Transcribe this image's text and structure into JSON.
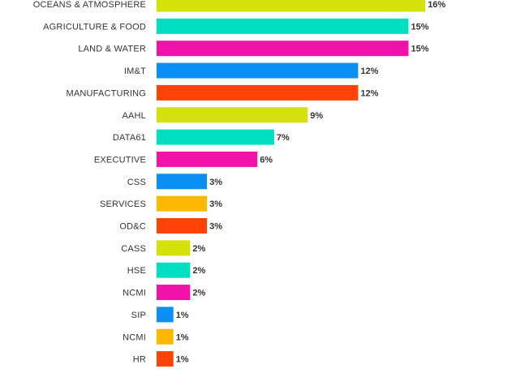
{
  "chart_data": {
    "type": "bar",
    "orientation": "horizontal",
    "categories": [
      "OCEANS & ATMOSPHERE",
      "AGRICULTURE & FOOD",
      "LAND & WATER",
      "IM&T",
      "MANUFACTURING",
      "AAHL",
      "DATA61",
      "EXECUTIVE",
      "CSS",
      "SERVICES",
      "OD&C",
      "CASS",
      "HSE",
      "NCMI",
      "SIP",
      "NCMI",
      "HR"
    ],
    "values": [
      16,
      15,
      15,
      12,
      12,
      9,
      7,
      6,
      3,
      3,
      3,
      2,
      2,
      2,
      1,
      1,
      1
    ],
    "value_labels": [
      "16%",
      "15%",
      "15%",
      "12%",
      "12%",
      "9%",
      "7%",
      "6%",
      "3%",
      "3%",
      "3%",
      "2%",
      "2%",
      "2%",
      "1%",
      "1%",
      "1%"
    ],
    "colors": [
      "#d4e10b",
      "#00e0c0",
      "#f012a9",
      "#0a90f5",
      "#ff4208",
      "#d4e10b",
      "#00e0c0",
      "#f012a9",
      "#0a90f5",
      "#ffb800",
      "#ff4208",
      "#d4e10b",
      "#00e0c0",
      "#f012a9",
      "#0a90f5",
      "#ffb800",
      "#ff4208"
    ],
    "title": "",
    "xlabel": "",
    "ylabel": "",
    "xlim": [
      0,
      16
    ],
    "grid": false,
    "legend": "none"
  }
}
